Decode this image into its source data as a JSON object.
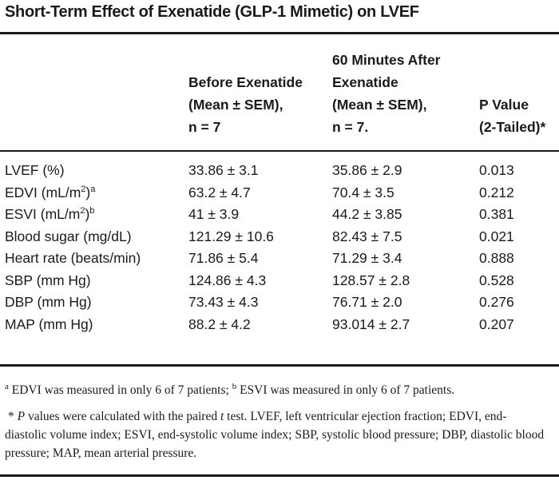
{
  "title": "Short-Term Effect of Exenatide (GLP-1 Mimetic) on LVEF",
  "headers": {
    "col1": [
      "Before Exenatide",
      "(Mean ± SEM),",
      "n = 7"
    ],
    "col2": [
      "60 Minutes After",
      "Exenatide",
      "(Mean ± SEM),",
      "n = 7."
    ],
    "col3": [
      "P Value",
      "(2-Tailed)*"
    ]
  },
  "rows": [
    {
      "label": "LVEF (%)",
      "sup": "",
      "label2": "",
      "before": "33.86 ± 3.1",
      "after": "35.86 ± 2.9",
      "p": "0.013"
    },
    {
      "label": "EDVI (mL/m",
      "sup": "2",
      "label2": ")",
      "mark": "a",
      "before": "63.2 ± 4.7",
      "after": "70.4 ± 3.5",
      "p": "0.212"
    },
    {
      "label": "ESVI (mL/m",
      "sup": "2",
      "label2": ")",
      "mark": "b",
      "before": "41 ± 3.9",
      "after": "44.2 ± 3.85",
      "p": "0.381"
    },
    {
      "label": "Blood sugar (mg/dL)",
      "sup": "",
      "label2": "",
      "before": "121.29 ± 10.6",
      "after": "82.43 ± 7.5",
      "p": "0.021"
    },
    {
      "label": "Heart rate (beats/min)",
      "sup": "",
      "label2": "",
      "before": "71.86 ± 5.4",
      "after": "71.29 ± 3.4",
      "p": "0.888"
    },
    {
      "label": "SBP (mm Hg)",
      "sup": "",
      "label2": "",
      "before": "124.86 ± 4.3",
      "after": "128.57 ± 2.8",
      "p": "0.528"
    },
    {
      "label": "DBP (mm Hg)",
      "sup": "",
      "label2": "",
      "before": "73.43 ± 4.3",
      "after": "76.71 ± 2.0",
      "p": "0.276"
    },
    {
      "label": "MAP (mm Hg)",
      "sup": "",
      "label2": "",
      "before": "88.2 ± 4.2",
      "after": "93.014 ± 2.7",
      "p": "0.207"
    }
  ],
  "footnotes": {
    "a_mark": "a",
    "a_text": " EDVI was measured in only 6 of 7 patients; ",
    "b_mark": "b",
    "b_text": " ESVI was measured in only 6 of 7 patients.",
    "star": " * ",
    "p": "P",
    "star_text1": " values were calculated with the paired ",
    "t": "t",
    "star_text2": " test. LVEF, left ventricular ejection fraction; EDVI, end-diastolic volume index; ESVI, end-systolic volume index; SBP, systolic blood pressure; DBP, diastolic blood pressure; MAP, mean arterial pressure."
  }
}
